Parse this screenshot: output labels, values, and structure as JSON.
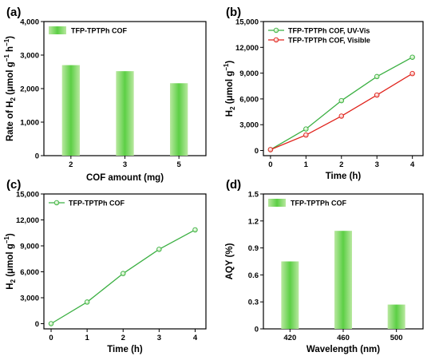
{
  "chart_data": [
    {
      "panel": "(a)",
      "type": "bar",
      "categories": [
        "2",
        "3",
        "5"
      ],
      "series": [
        {
          "name": "TFP-TPTPh COF",
          "values": [
            2700,
            2520,
            2160
          ]
        }
      ],
      "ylim": [
        0,
        4000
      ],
      "yticks": [
        "0",
        "1,000",
        "2,000",
        "3,000",
        "4,000"
      ],
      "xlabel": "COF amount (mg)",
      "ylabel_parts": [
        "Rate of H",
        "2",
        " (μmol g",
        "−1",
        " h",
        "−1",
        ")"
      ],
      "grid": false,
      "legend": "top-left"
    },
    {
      "panel": "(b)",
      "type": "line",
      "x": [
        0,
        1,
        2,
        3,
        4
      ],
      "series": [
        {
          "name": "TFP-TPTPh COF, UV-Vis",
          "color": "#3cb043",
          "values": [
            100,
            2500,
            5800,
            8600,
            10850
          ]
        },
        {
          "name": "TFP-TPTPh COF, Visible",
          "color": "#e0231c",
          "values": [
            100,
            1800,
            4000,
            6450,
            8950
          ]
        }
      ],
      "xlim": [
        -0.2,
        4.3
      ],
      "ylim": [
        -600,
        15000
      ],
      "xticks": [
        "0",
        "1",
        "2",
        "3",
        "4"
      ],
      "yticks": [
        "0",
        "3,000",
        "6,000",
        "9,000",
        "12,000",
        "15,000"
      ],
      "xlabel": "Time (h)",
      "ylabel_parts": [
        "H",
        "2",
        " (μmol g",
        "−1",
        ")"
      ],
      "grid": false,
      "legend": "top-left"
    },
    {
      "panel": "(c)",
      "type": "line",
      "x": [
        0,
        1,
        2,
        3,
        4
      ],
      "series": [
        {
          "name": "TFP-TPTPh COF",
          "color": "#3cb043",
          "values": [
            0,
            2500,
            5800,
            8600,
            10850
          ]
        }
      ],
      "xlim": [
        -0.2,
        4.3
      ],
      "ylim": [
        -600,
        15000
      ],
      "xticks": [
        "0",
        "1",
        "2",
        "3",
        "4"
      ],
      "yticks": [
        "0",
        "3,000",
        "6,000",
        "9,000",
        "12,000",
        "15,000"
      ],
      "xlabel": "Time (h)",
      "ylabel_parts": [
        "H",
        "2",
        " (μmol g",
        "−1",
        ")"
      ],
      "grid": false,
      "legend": "top-left"
    },
    {
      "panel": "(d)",
      "type": "bar",
      "categories": [
        "420",
        "460",
        "500"
      ],
      "series": [
        {
          "name": "TFP-TPTPh COF",
          "values": [
            0.75,
            1.09,
            0.27
          ]
        }
      ],
      "ylim": [
        0,
        1.5
      ],
      "yticks": [
        "0",
        "0.3",
        "0.6",
        "0.9",
        "1.2",
        "1.5"
      ],
      "xlabel": "Wavelength (nm)",
      "ylabel_parts": [
        "AQY (%)"
      ],
      "grid": false,
      "legend": "top-left"
    }
  ],
  "colors": {
    "bar_light": "#c8eeb4",
    "bar_mid": "#7ed860",
    "bar_dark": "#3cb043",
    "axis": "#000000"
  }
}
